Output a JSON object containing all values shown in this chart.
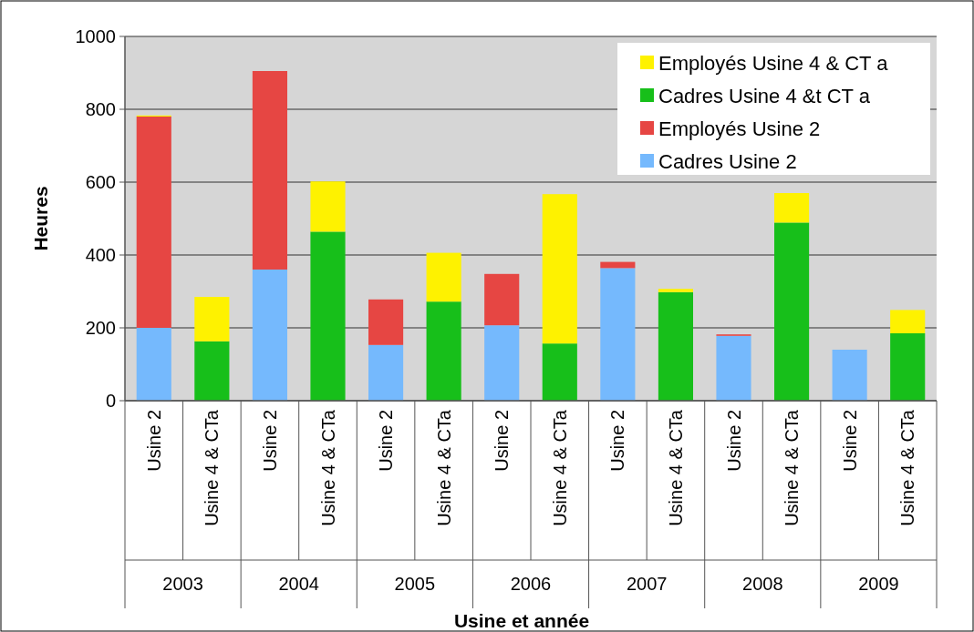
{
  "chart_data": {
    "type": "bar",
    "stacked": true,
    "xlabel": "Usine et année",
    "ylabel": "Heures",
    "categories": [
      "Usine 2",
      "Usine 4 & CTa",
      "Usine 2",
      "Usine 4 & CTa",
      "Usine 2",
      "Usine 4 & CTa",
      "Usine 2",
      "Usine 4 & CTa",
      "Usine 2",
      "Usine 4 & CTa",
      "Usine 2",
      "Usine 4 & CTa",
      "Usine 2",
      "Usine 4 & CTa"
    ],
    "annotations": [
      "2003",
      "2004",
      "2005",
      "2006",
      "2007",
      "2008",
      "2009"
    ],
    "series": [
      {
        "name": "Cadres Usine 2",
        "color": "#75b9fd",
        "values": [
          200,
          null,
          360,
          null,
          153,
          null,
          207,
          null,
          364,
          null,
          178,
          null,
          140,
          null
        ]
      },
      {
        "name": "Employés Usine 2",
        "color": "#e64643",
        "values": [
          580,
          null,
          545,
          null,
          125,
          null,
          141,
          null,
          17,
          null,
          4,
          null,
          null,
          null
        ]
      },
      {
        "name": "Cadres Usine 4 &t CT a",
        "color": "#17bf1a",
        "values": [
          null,
          163,
          null,
          464,
          null,
          272,
          null,
          157,
          null,
          298,
          null,
          489,
          null,
          185
        ]
      },
      {
        "name": "Employés Usine 4 & CT a",
        "color": "#fef200",
        "values": [
          3,
          122,
          null,
          138,
          null,
          134,
          null,
          410,
          null,
          9,
          null,
          81,
          null,
          64
        ]
      }
    ],
    "ylim": [
      0,
      1000
    ],
    "yticks": [
      0,
      200,
      400,
      600,
      800,
      1000
    ],
    "grid": "y",
    "legend": "top right"
  }
}
